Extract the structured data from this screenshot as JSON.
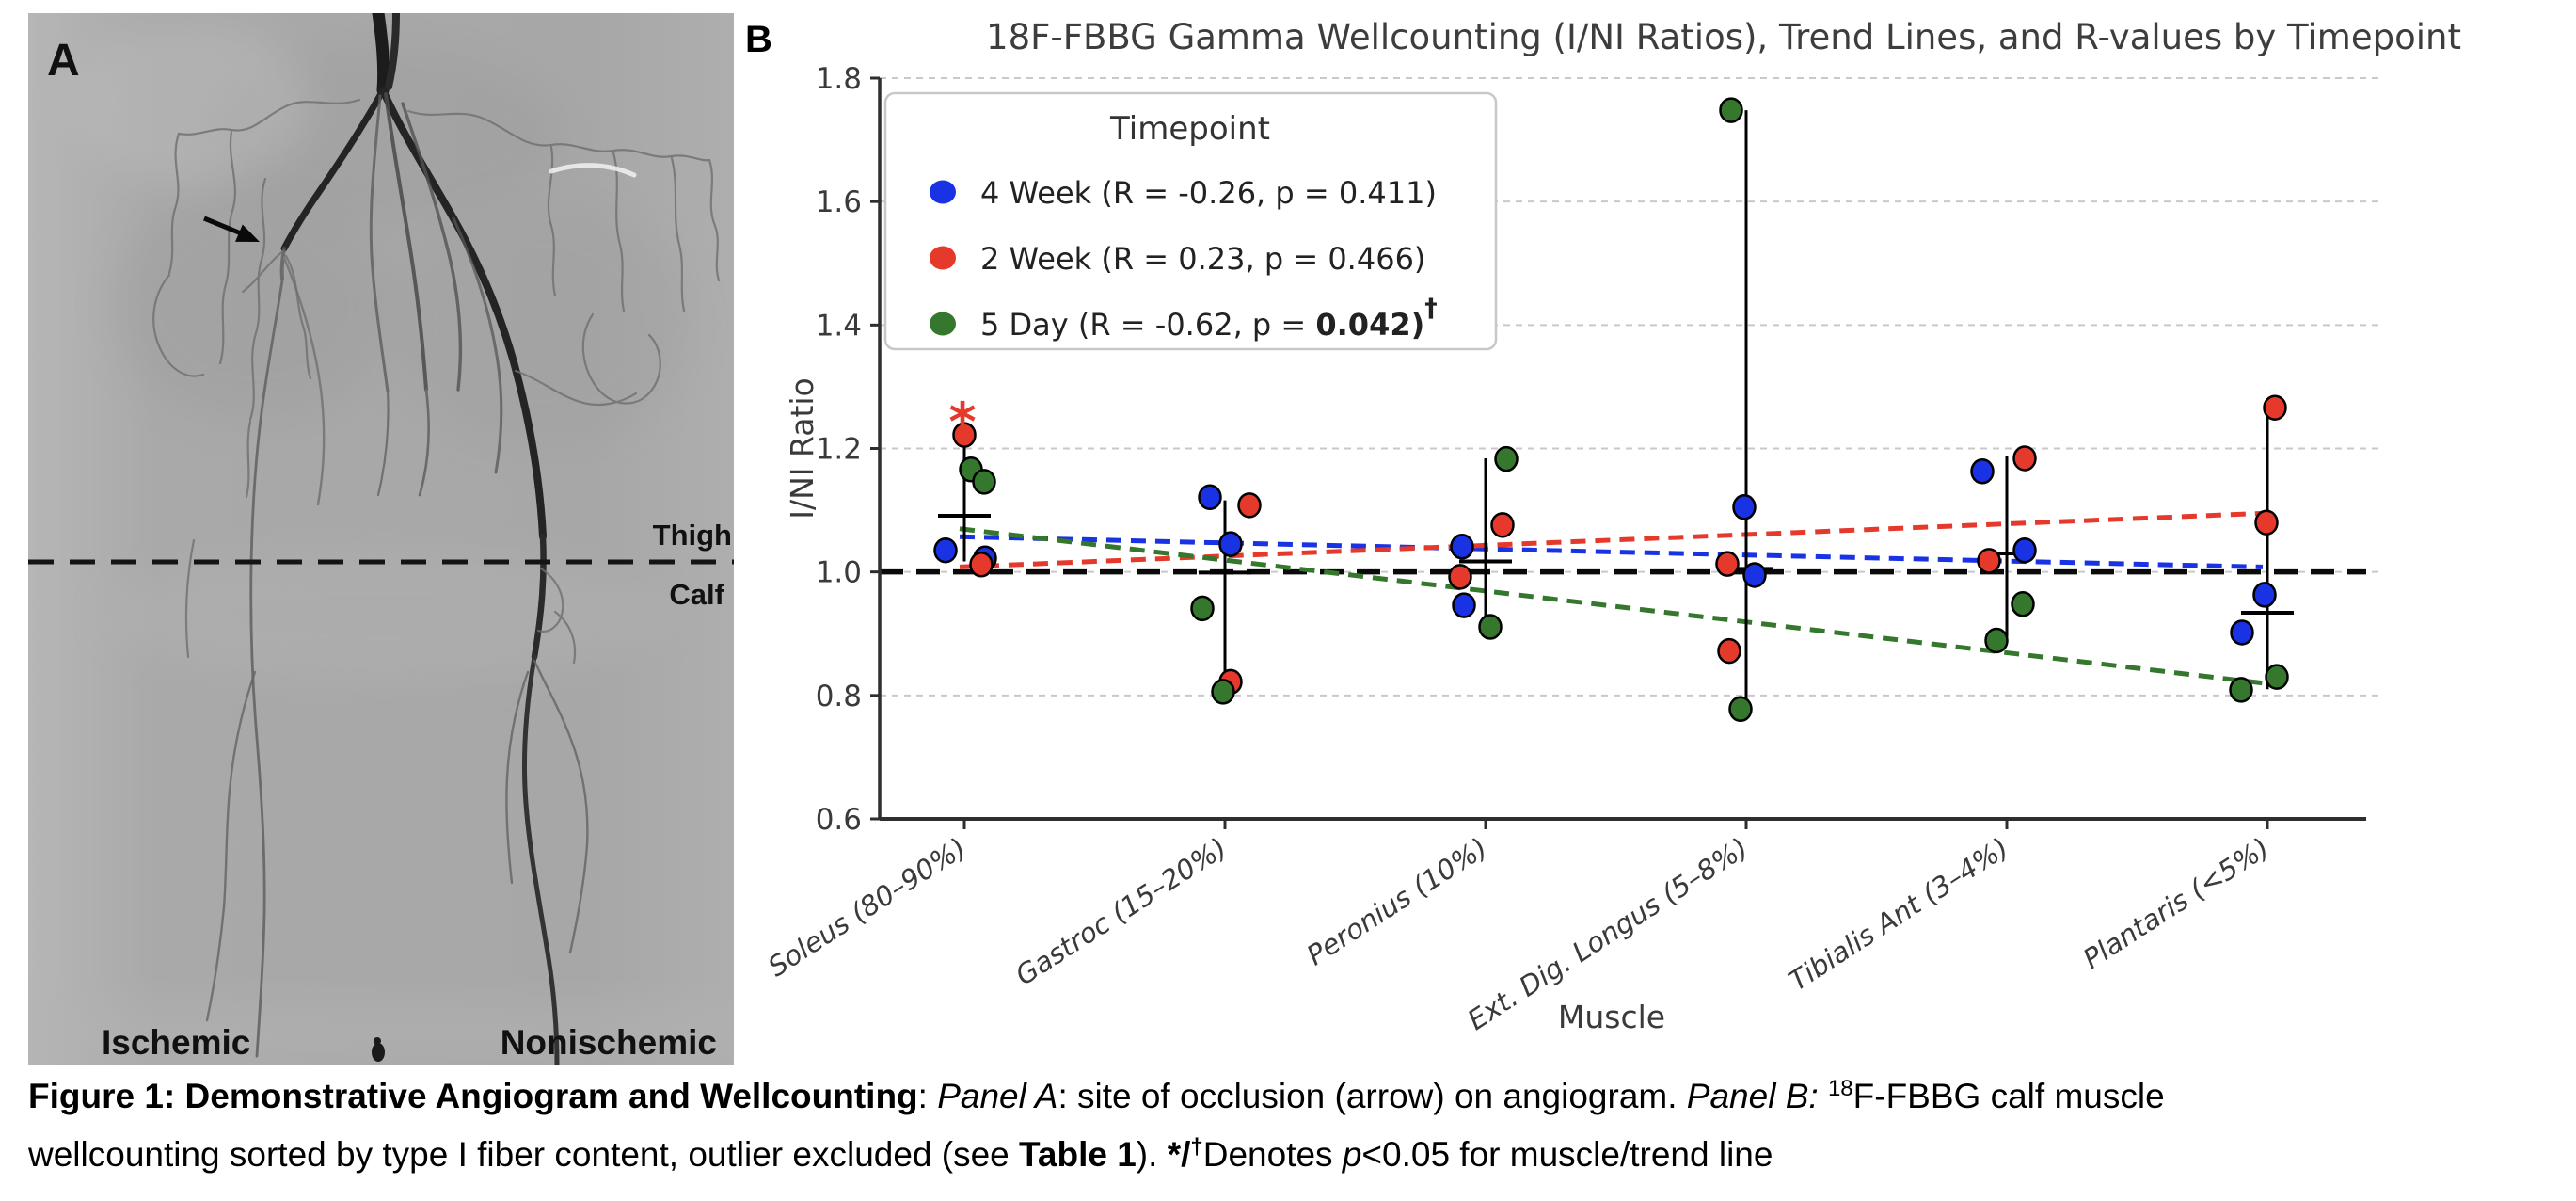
{
  "panel_a": {
    "label": "A",
    "thigh": "Thigh",
    "calf": "Calf",
    "ischemic": "Ischemic",
    "nonischemic": "Nonischemic"
  },
  "panel_b": {
    "label": "B"
  },
  "chart_data": {
    "type": "scatter",
    "title": "18F-FBBG Gamma Wellcounting (I/NI Ratios), Trend Lines, and R-values by Timepoint",
    "xlabel": "Muscle",
    "ylabel": "I/NI Ratio",
    "ylim": [
      0.6,
      1.8
    ],
    "yticks": [
      1.8,
      1.6,
      1.4,
      1.2,
      1.0,
      0.8,
      0.6
    ],
    "reference_line": 1.0,
    "grid": true,
    "legend_position": "upper left",
    "legend_title": "Timepoint",
    "categories": [
      "Soleus (80–90%)",
      "Gastroc (15–20%)",
      "Peronius (10%)",
      "Ext. Dig. Longus (5–8%)",
      "Tibialis Ant (3–4%)",
      "Plantaris (<5%)"
    ],
    "series": [
      {
        "name": "4 Week",
        "color": "#1832e4",
        "R": -0.26,
        "p": 0.411,
        "legend_label": "4 Week (R = -0.26, p = 0.411)",
        "trend": [
          1.057,
          1.008
        ],
        "points": [
          [
            0,
            1.035,
            -20
          ],
          [
            0,
            1.022,
            22
          ],
          [
            1,
            1.121,
            -16
          ],
          [
            1,
            1.045,
            6
          ],
          [
            2,
            1.041,
            -25
          ],
          [
            2,
            0.946,
            -23
          ],
          [
            3,
            1.105,
            -2
          ],
          [
            3,
            0.995,
            9
          ],
          [
            4,
            1.163,
            -26
          ],
          [
            4,
            1.035,
            19
          ],
          [
            5,
            0.963,
            -3
          ],
          [
            5,
            0.902,
            -27
          ]
        ]
      },
      {
        "name": "2 Week",
        "color": "#e53a2b",
        "R": 0.23,
        "p": 0.466,
        "legend_label": "2 Week (R = 0.23, p = 0.466)",
        "trend": [
          1.008,
          1.095
        ],
        "points": [
          [
            0,
            1.222,
            0
          ],
          [
            0,
            1.012,
            18
          ],
          [
            1,
            1.108,
            26
          ],
          [
            1,
            0.822,
            6
          ],
          [
            2,
            1.076,
            18
          ],
          [
            2,
            0.992,
            -27
          ],
          [
            3,
            1.013,
            -20
          ],
          [
            3,
            0.872,
            -18
          ],
          [
            4,
            1.184,
            19
          ],
          [
            4,
            1.018,
            -19
          ],
          [
            5,
            1.266,
            8
          ],
          [
            5,
            1.08,
            -1
          ]
        ]
      },
      {
        "name": "5 Day",
        "color": "#35782d",
        "R": -0.62,
        "p": 0.042,
        "legend_label": "5 Day (R = -0.62, p = ",
        "legend_label_bold": "0.042)",
        "legend_label_sup": "†",
        "trend": [
          1.07,
          0.82
        ],
        "points": [
          [
            0,
            1.166,
            7
          ],
          [
            0,
            1.146,
            21
          ],
          [
            1,
            0.941,
            -24
          ],
          [
            1,
            0.806,
            -2
          ],
          [
            2,
            1.183,
            22
          ],
          [
            2,
            0.911,
            5
          ],
          [
            3,
            1.748,
            -16
          ],
          [
            3,
            0.778,
            -6
          ],
          [
            4,
            0.948,
            17
          ],
          [
            4,
            0.889,
            -11
          ],
          [
            5,
            0.83,
            10
          ],
          [
            5,
            0.809,
            -28
          ]
        ]
      }
    ],
    "group_stats": [
      {
        "mean": 1.091,
        "lo": 1.017,
        "hi": 1.215
      },
      {
        "mean": 0.999,
        "lo": 0.812,
        "hi": 1.116
      },
      {
        "mean": 1.017,
        "lo": 0.902,
        "hi": 1.184
      },
      {
        "mean": 1.005,
        "lo": 0.79,
        "hi": 1.748
      },
      {
        "mean": 1.03,
        "lo": 0.895,
        "hi": 1.187
      },
      {
        "mean": 0.934,
        "lo": 0.81,
        "hi": 1.266
      }
    ],
    "annotations": [
      {
        "type": "asterisk",
        "symbol": "*",
        "category": 0,
        "dx": -2,
        "y": 1.272,
        "color": "#e53a2b"
      }
    ]
  },
  "caption": {
    "line1": [
      {
        "t": "Figure 1: Demonstrative Angiogram and Wellcounting",
        "s": "b"
      },
      {
        "t": ": ",
        "s": "n"
      },
      {
        "t": "Panel A",
        "s": "i"
      },
      {
        "t": ": site of occlusion (arrow) on angiogram. ",
        "s": "n"
      },
      {
        "t": "Panel B: ",
        "s": "i"
      },
      {
        "t": "18",
        "s": "sup"
      },
      {
        "t": "F-FBBG calf muscle",
        "s": "n"
      }
    ],
    "line2": [
      {
        "t": "wellcounting sorted by type I fiber content, outlier excluded (see ",
        "s": "n"
      },
      {
        "t": "Table 1",
        "s": "b"
      },
      {
        "t": "). ",
        "s": "n"
      },
      {
        "t": "*/",
        "s": "b"
      },
      {
        "t": "†",
        "s": "bsup"
      },
      {
        "t": "Denotes ",
        "s": "n"
      },
      {
        "t": "p",
        "s": "i"
      },
      {
        "t": "<0.05 for muscle/trend line",
        "s": "n"
      }
    ]
  }
}
